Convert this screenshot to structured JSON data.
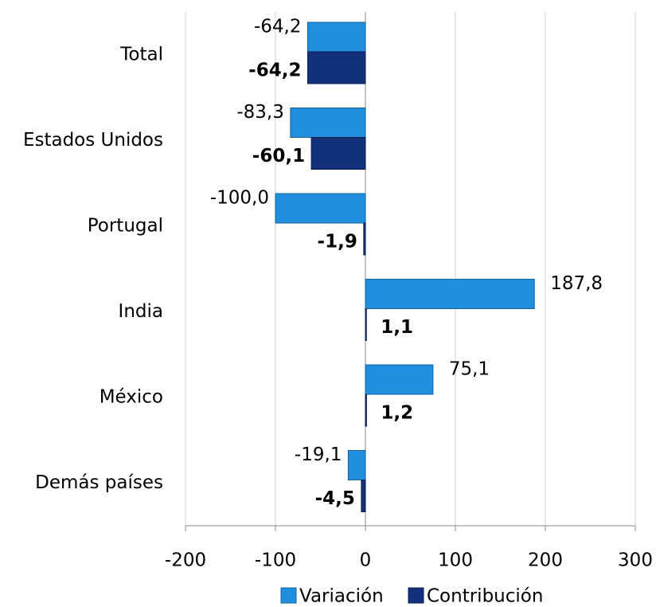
{
  "chart_data": {
    "type": "hbar",
    "categories": [
      "Total",
      "Estados Unidos",
      "Portugal",
      "India",
      "México",
      "Demás países"
    ],
    "series": [
      {
        "name": "Variación",
        "color": "#1f8fde",
        "values": [
          -64.2,
          -83.3,
          -100.0,
          187.8,
          75.1,
          -19.1
        ],
        "value_labels": [
          "-64,2",
          "-83,3",
          "-100,0",
          "187,8",
          "75,1",
          "-19,1"
        ]
      },
      {
        "name": "Contribución",
        "color": "#13307a",
        "values": [
          -64.2,
          -60.1,
          -1.9,
          1.1,
          1.2,
          -4.5
        ],
        "value_labels": [
          "-64,2",
          "-60,1",
          "-1,9",
          "1,1",
          "1,2",
          "-4,5"
        ]
      }
    ],
    "xlim": [
      -200,
      300
    ],
    "xticks": [
      -200,
      -100,
      0,
      100,
      200,
      300
    ],
    "grid": true,
    "legend": "bottom"
  }
}
